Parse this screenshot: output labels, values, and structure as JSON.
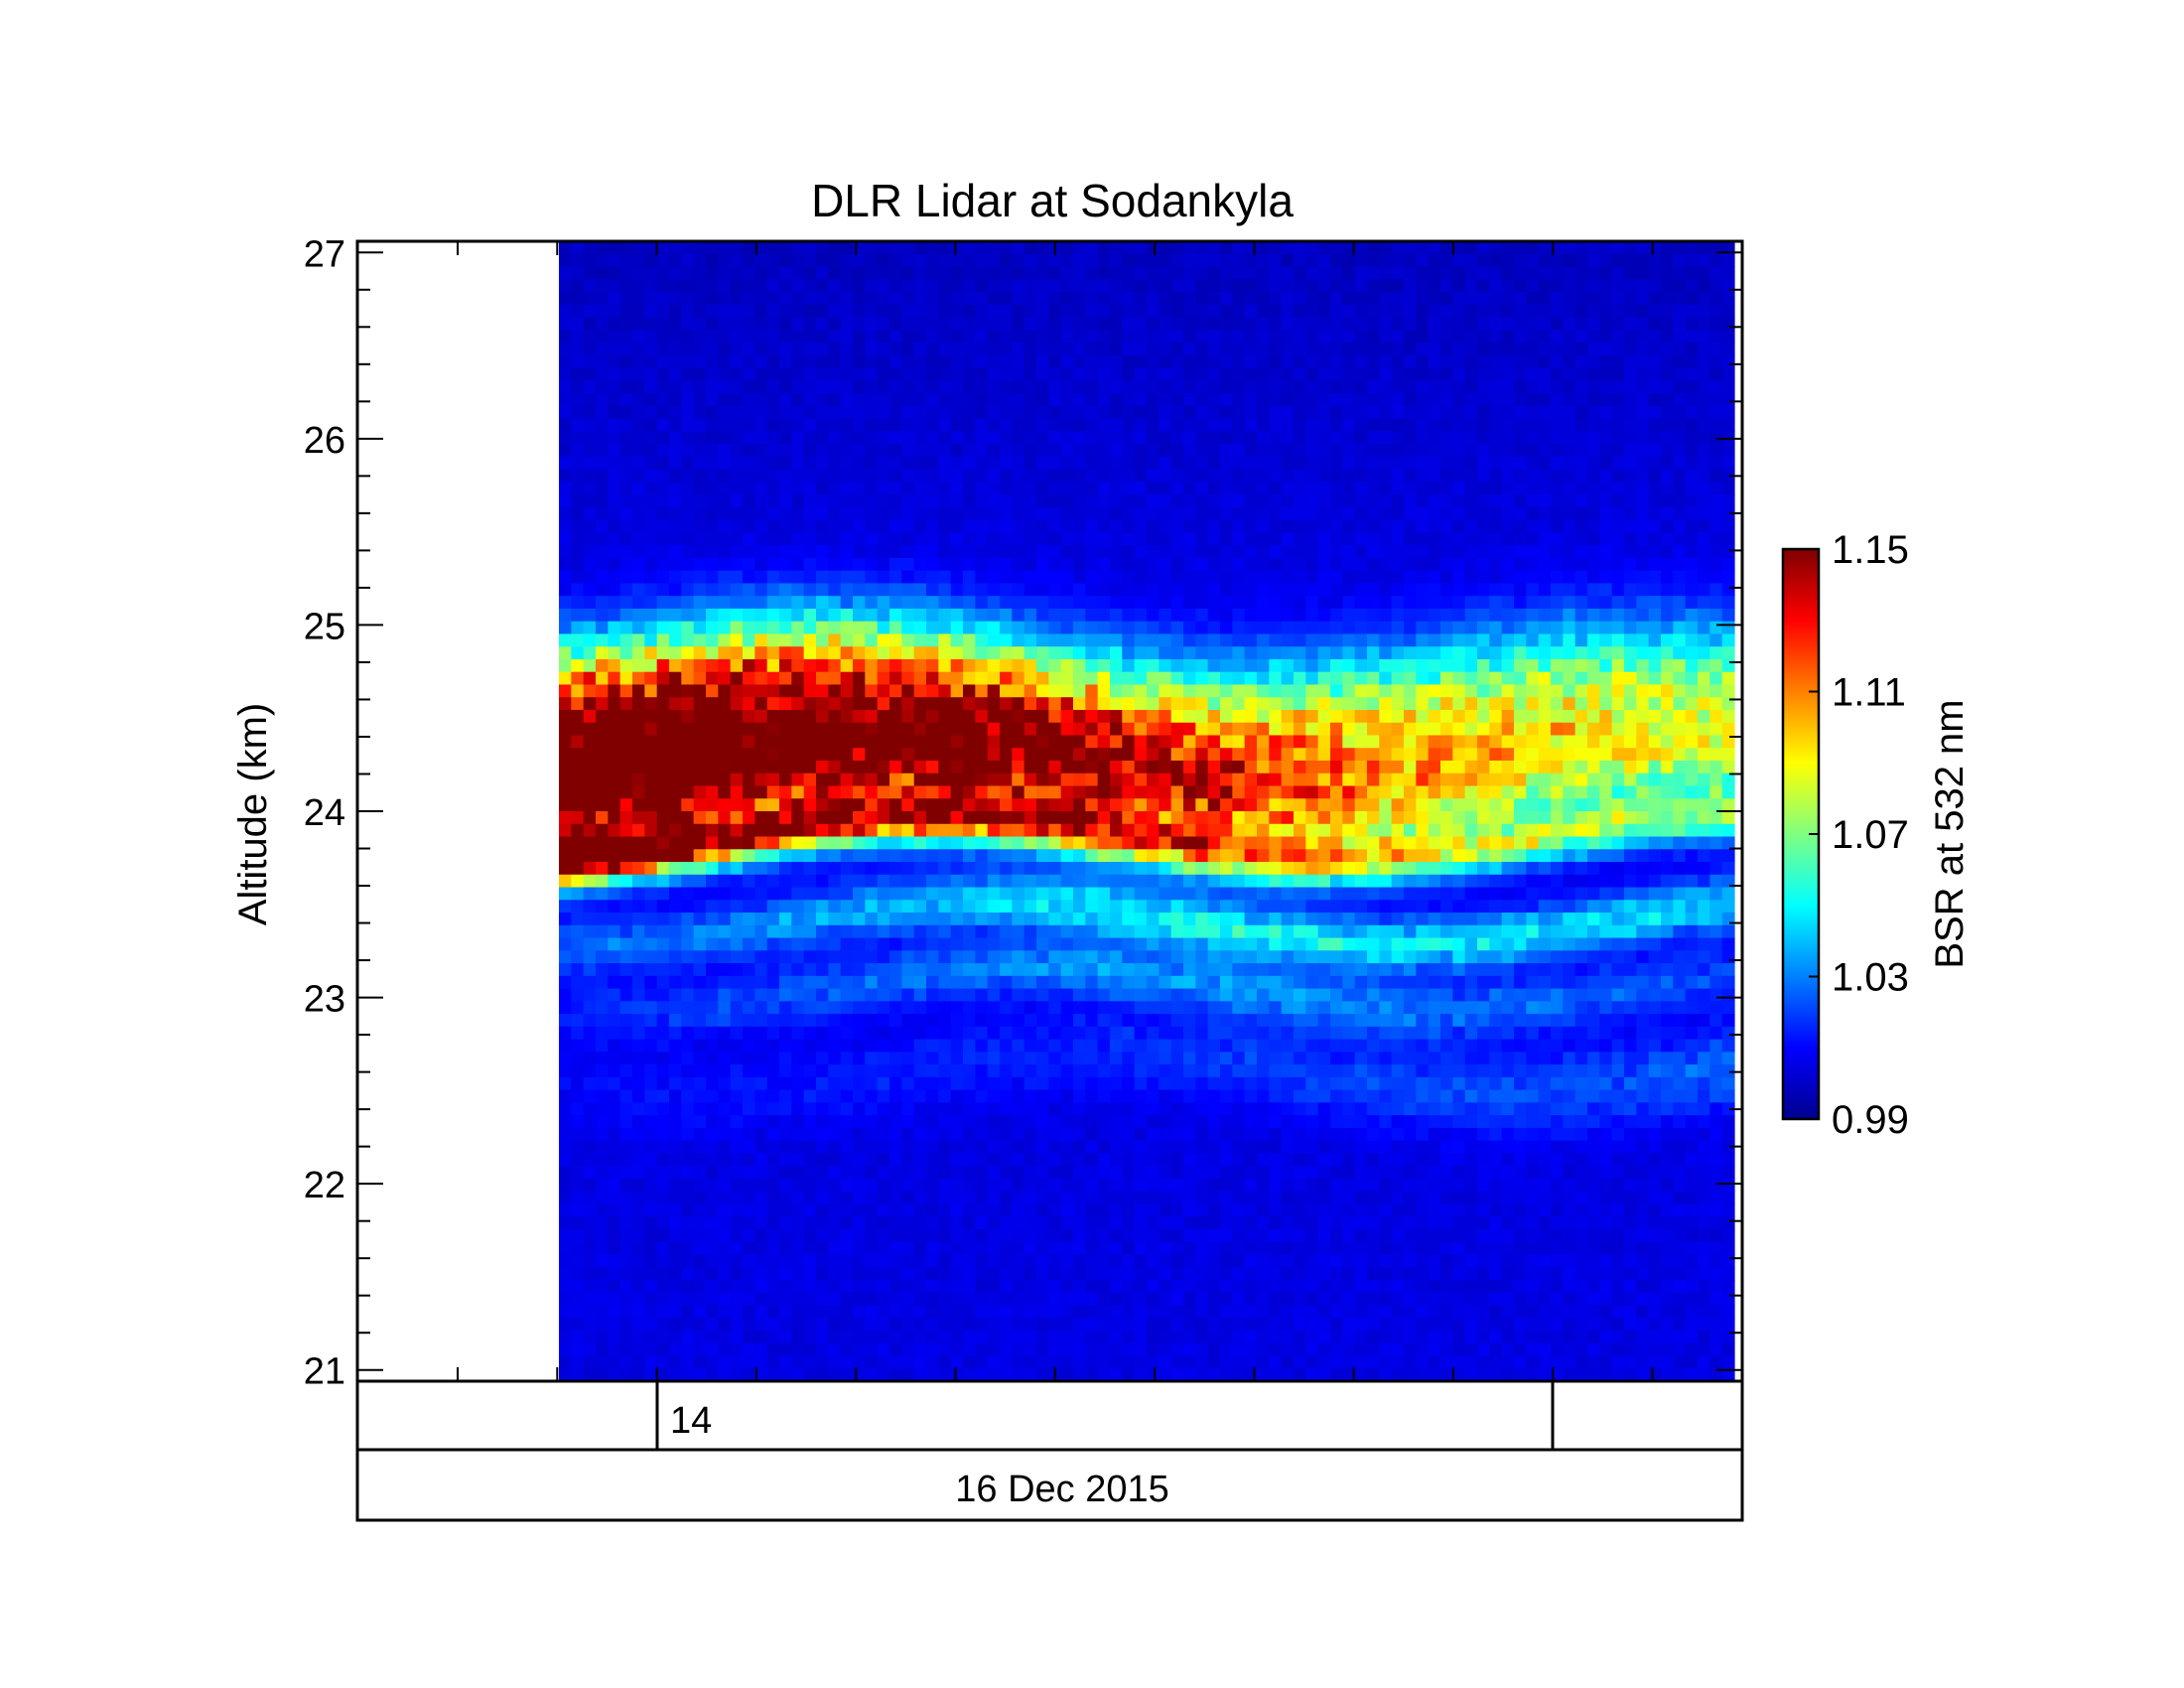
{
  "chart_data": {
    "type": "heatmap",
    "title": "DLR Lidar at Sodankyla",
    "ylabel": "Altitude (km)",
    "ylim": [
      20.94,
      27.06
    ],
    "yticks": [
      21,
      22,
      23,
      24,
      25,
      26,
      27
    ],
    "y_tick_labels": [
      "21",
      "22",
      "23",
      "24",
      "25",
      "26",
      "27"
    ],
    "x_axis": {
      "hour_label": "14",
      "date_label": "16 Dec 2015"
    },
    "colorbar": {
      "label": "BSR at 532 nm",
      "range": [
        0.99,
        1.15
      ],
      "ticks": [
        0.99,
        1.03,
        1.07,
        1.11,
        1.15
      ],
      "tick_labels": [
        "0.99",
        "1.03",
        "1.07",
        "1.11",
        "1.15"
      ],
      "colormap": [
        "#00008f",
        "#0000ff",
        "#0080ff",
        "#00ffff",
        "#80ff80",
        "#ffff00",
        "#ff8000",
        "#ff0000",
        "#800000"
      ]
    },
    "layers": [
      {
        "alt": 24.55,
        "thick": 0.38,
        "peak_start": 1.145,
        "peak_mid": 1.085,
        "peak_end": 1.06
      },
      {
        "alt": 24.15,
        "thick": 0.32,
        "peak_start": 1.14,
        "peak_mid": 1.095,
        "peak_end": 1.05
      },
      {
        "alt": 23.85,
        "thick": 0.12,
        "peak_start": 1.13,
        "peak_mid": 1.075,
        "peak_end": 1.045
      },
      {
        "alt": 23.4,
        "thick": 0.14,
        "peak_start": 1.02,
        "peak_mid": 1.045,
        "peak_end": 1.04
      },
      {
        "alt": 23.05,
        "thick": 0.16,
        "peak_start": 1.01,
        "peak_mid": 1.03,
        "peak_end": 1.015
      },
      {
        "alt": 22.6,
        "thick": 0.22,
        "peak_start": 1.005,
        "peak_mid": 1.012,
        "peak_end": 1.02
      }
    ],
    "background_bsr": 1.005
  }
}
